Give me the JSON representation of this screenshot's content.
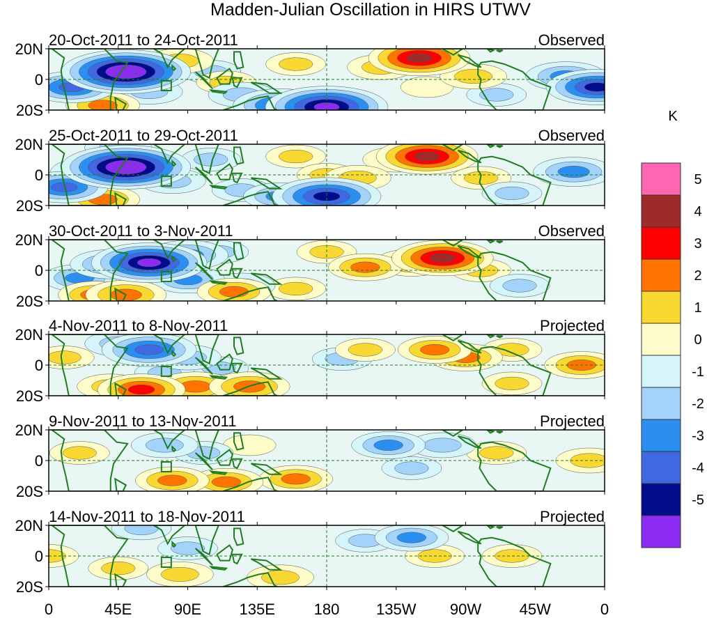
{
  "chart_data": {
    "type": "heatmap",
    "title": "Madden-Julian Oscillation in HIRS UTWV",
    "colorbar": {
      "unit": "K",
      "levels": [
        "5",
        "4",
        "3",
        "2",
        "1",
        "0",
        "-1",
        "-2",
        "-3",
        "-4",
        "-5"
      ],
      "bins": [
        {
          "range": "> 5",
          "color": "#ff66b2"
        },
        {
          "range": "4 to 5",
          "color": "#9e2a2a"
        },
        {
          "range": "3 to 4",
          "color": "#ff0000"
        },
        {
          "range": "2 to 3",
          "color": "#ff7300"
        },
        {
          "range": "1 to 2",
          "color": "#fad832"
        },
        {
          "range": "0 to 1",
          "color": "#fdfbc8"
        },
        {
          "range": "-1 to 0",
          "color": "#d6f5fb"
        },
        {
          "range": "-2 to -1",
          "color": "#a3d2fb"
        },
        {
          "range": "-3 to -2",
          "color": "#2a8ff0"
        },
        {
          "range": "-4 to -3",
          "color": "#4068e2"
        },
        {
          "range": "-5 to -4",
          "color": "#000c8c"
        },
        {
          "range": "< -5",
          "color": "#8c2bf2"
        }
      ]
    },
    "x_axis": {
      "tick_labels": [
        "0",
        "45E",
        "90E",
        "135E",
        "180",
        "135W",
        "90W",
        "45W",
        "0"
      ],
      "range_deg_east": [
        0,
        360
      ]
    },
    "y_axis": {
      "tick_labels": [
        "20N",
        "0",
        "20S"
      ],
      "range_deg": [
        -20,
        20
      ]
    },
    "panels": [
      {
        "period": "20-Oct-2011 to 24-Oct-2011",
        "status": "Observed",
        "anomalies": [
          {
            "lon": 50,
            "lat": 5,
            "value": -6.5
          },
          {
            "lon": 65,
            "lat": -8,
            "value": -2
          },
          {
            "lon": 15,
            "lat": -5,
            "value": -3.5
          },
          {
            "lon": 355,
            "lat": -5,
            "value": -4.5
          },
          {
            "lon": 335,
            "lat": 2,
            "value": -3
          },
          {
            "lon": 35,
            "lat": -17,
            "value": 2.5
          },
          {
            "lon": 180,
            "lat": -18,
            "value": -6
          },
          {
            "lon": 150,
            "lat": -17,
            "value": -4
          },
          {
            "lon": 125,
            "lat": -10,
            "value": -2
          },
          {
            "lon": 105,
            "lat": 5,
            "value": -1.5
          },
          {
            "lon": 85,
            "lat": 12,
            "value": 2
          },
          {
            "lon": 115,
            "lat": -2,
            "value": 1.5
          },
          {
            "lon": 160,
            "lat": 10,
            "value": 1.5
          },
          {
            "lon": 240,
            "lat": 14,
            "value": 4.5
          },
          {
            "lon": 215,
            "lat": 8,
            "value": 2
          },
          {
            "lon": 275,
            "lat": 2,
            "value": 2
          },
          {
            "lon": 290,
            "lat": -10,
            "value": -1.5
          },
          {
            "lon": 245,
            "lat": -5,
            "value": 1
          }
        ]
      },
      {
        "period": "25-Oct-2011 to 29-Oct-2011",
        "status": "Observed",
        "anomalies": [
          {
            "lon": 50,
            "lat": 5,
            "value": -6.5
          },
          {
            "lon": 25,
            "lat": 2,
            "value": -2.5
          },
          {
            "lon": 10,
            "lat": -8,
            "value": -3.5
          },
          {
            "lon": 340,
            "lat": 2,
            "value": -3
          },
          {
            "lon": 80,
            "lat": -4,
            "value": -2
          },
          {
            "lon": 35,
            "lat": -16,
            "value": 2.5
          },
          {
            "lon": 45,
            "lat": 18,
            "value": -2
          },
          {
            "lon": 180,
            "lat": -14,
            "value": -5
          },
          {
            "lon": 150,
            "lat": -14,
            "value": -2.5
          },
          {
            "lon": 105,
            "lat": 10,
            "value": -1.5
          },
          {
            "lon": 125,
            "lat": -10,
            "value": -1.5
          },
          {
            "lon": 160,
            "lat": 12,
            "value": 1.5
          },
          {
            "lon": 180,
            "lat": 0,
            "value": 1.5
          },
          {
            "lon": 245,
            "lat": 12,
            "value": 4.5
          },
          {
            "lon": 225,
            "lat": 10,
            "value": 2
          },
          {
            "lon": 200,
            "lat": -2,
            "value": 2
          },
          {
            "lon": 280,
            "lat": -2,
            "value": 1.5
          },
          {
            "lon": 300,
            "lat": -12,
            "value": -1.5
          }
        ]
      },
      {
        "period": "30-Oct-2011 to 3-Nov-2011",
        "status": "Observed",
        "anomalies": [
          {
            "lon": 65,
            "lat": 5,
            "value": -5.5
          },
          {
            "lon": 40,
            "lat": 4,
            "value": -3
          },
          {
            "lon": 20,
            "lat": -5,
            "value": -2.5
          },
          {
            "lon": 90,
            "lat": 10,
            "value": -3
          },
          {
            "lon": 110,
            "lat": 12,
            "value": -1.5
          },
          {
            "lon": 90,
            "lat": -6,
            "value": -2.5
          },
          {
            "lon": 125,
            "lat": -10,
            "value": -2
          },
          {
            "lon": 50,
            "lat": -16,
            "value": 3
          },
          {
            "lon": 30,
            "lat": -16,
            "value": 2.5
          },
          {
            "lon": 120,
            "lat": -14,
            "value": 2.5
          },
          {
            "lon": 160,
            "lat": -12,
            "value": 1.5
          },
          {
            "lon": 180,
            "lat": 12,
            "value": 1.5
          },
          {
            "lon": 255,
            "lat": 8,
            "value": 4.5
          },
          {
            "lon": 235,
            "lat": 5,
            "value": 2.5
          },
          {
            "lon": 205,
            "lat": 2,
            "value": 2.5
          },
          {
            "lon": 280,
            "lat": 0,
            "value": 1.5
          },
          {
            "lon": 305,
            "lat": -10,
            "value": -1.5
          }
        ]
      },
      {
        "period": "4-Nov-2011 to 8-Nov-2011",
        "status": "Projected",
        "anomalies": [
          {
            "lon": 65,
            "lat": 10,
            "value": -4
          },
          {
            "lon": 45,
            "lat": 14,
            "value": -2
          },
          {
            "lon": 90,
            "lat": 5,
            "value": -2
          },
          {
            "lon": 110,
            "lat": -2,
            "value": -1.5
          },
          {
            "lon": 75,
            "lat": -5,
            "value": -1.5
          },
          {
            "lon": 190,
            "lat": 4,
            "value": -1.5
          },
          {
            "lon": 60,
            "lat": -16,
            "value": 3.5
          },
          {
            "lon": 95,
            "lat": -14,
            "value": 3
          },
          {
            "lon": 130,
            "lat": -14,
            "value": 3
          },
          {
            "lon": 40,
            "lat": -14,
            "value": 2
          },
          {
            "lon": 10,
            "lat": 5,
            "value": 1.5
          },
          {
            "lon": 345,
            "lat": 0,
            "value": 2.5
          },
          {
            "lon": 270,
            "lat": 5,
            "value": 2.5
          },
          {
            "lon": 250,
            "lat": 10,
            "value": 2.5
          },
          {
            "lon": 205,
            "lat": 10,
            "value": 1.5
          },
          {
            "lon": 300,
            "lat": 10,
            "value": 1.5
          },
          {
            "lon": 300,
            "lat": -12,
            "value": 1.5
          }
        ]
      },
      {
        "period": "9-Nov-2011 to 13-Nov-2011",
        "status": "Projected",
        "anomalies": [
          {
            "lon": 220,
            "lat": 10,
            "value": -2.5
          },
          {
            "lon": 255,
            "lat": 10,
            "value": -2
          },
          {
            "lon": 75,
            "lat": 10,
            "value": -2
          },
          {
            "lon": 100,
            "lat": 5,
            "value": -1.5
          },
          {
            "lon": 235,
            "lat": -5,
            "value": -1.5
          },
          {
            "lon": 160,
            "lat": -12,
            "value": 2.5
          },
          {
            "lon": 115,
            "lat": -14,
            "value": 2.5
          },
          {
            "lon": 80,
            "lat": -13,
            "value": 2.5
          },
          {
            "lon": 350,
            "lat": 0,
            "value": 2
          },
          {
            "lon": 20,
            "lat": 5,
            "value": 1.5
          },
          {
            "lon": 290,
            "lat": 5,
            "value": 1.5
          },
          {
            "lon": 130,
            "lat": 10,
            "value": 1
          }
        ]
      },
      {
        "period": "14-Nov-2011 to 18-Nov-2011",
        "status": "Projected",
        "anomalies": [
          {
            "lon": 235,
            "lat": 12,
            "value": -2.5
          },
          {
            "lon": 90,
            "lat": 5,
            "value": -1.5
          },
          {
            "lon": 60,
            "lat": 18,
            "value": -1.5
          },
          {
            "lon": 205,
            "lat": 10,
            "value": -1.5
          },
          {
            "lon": 250,
            "lat": 0,
            "value": 1.5
          },
          {
            "lon": 300,
            "lat": 0,
            "value": 1.5
          },
          {
            "lon": 0,
            "lat": 0,
            "value": 1.5
          },
          {
            "lon": 85,
            "lat": -12,
            "value": 2
          },
          {
            "lon": 150,
            "lat": -14,
            "value": 2
          },
          {
            "lon": 45,
            "lat": -8,
            "value": 1.5
          }
        ]
      }
    ]
  }
}
